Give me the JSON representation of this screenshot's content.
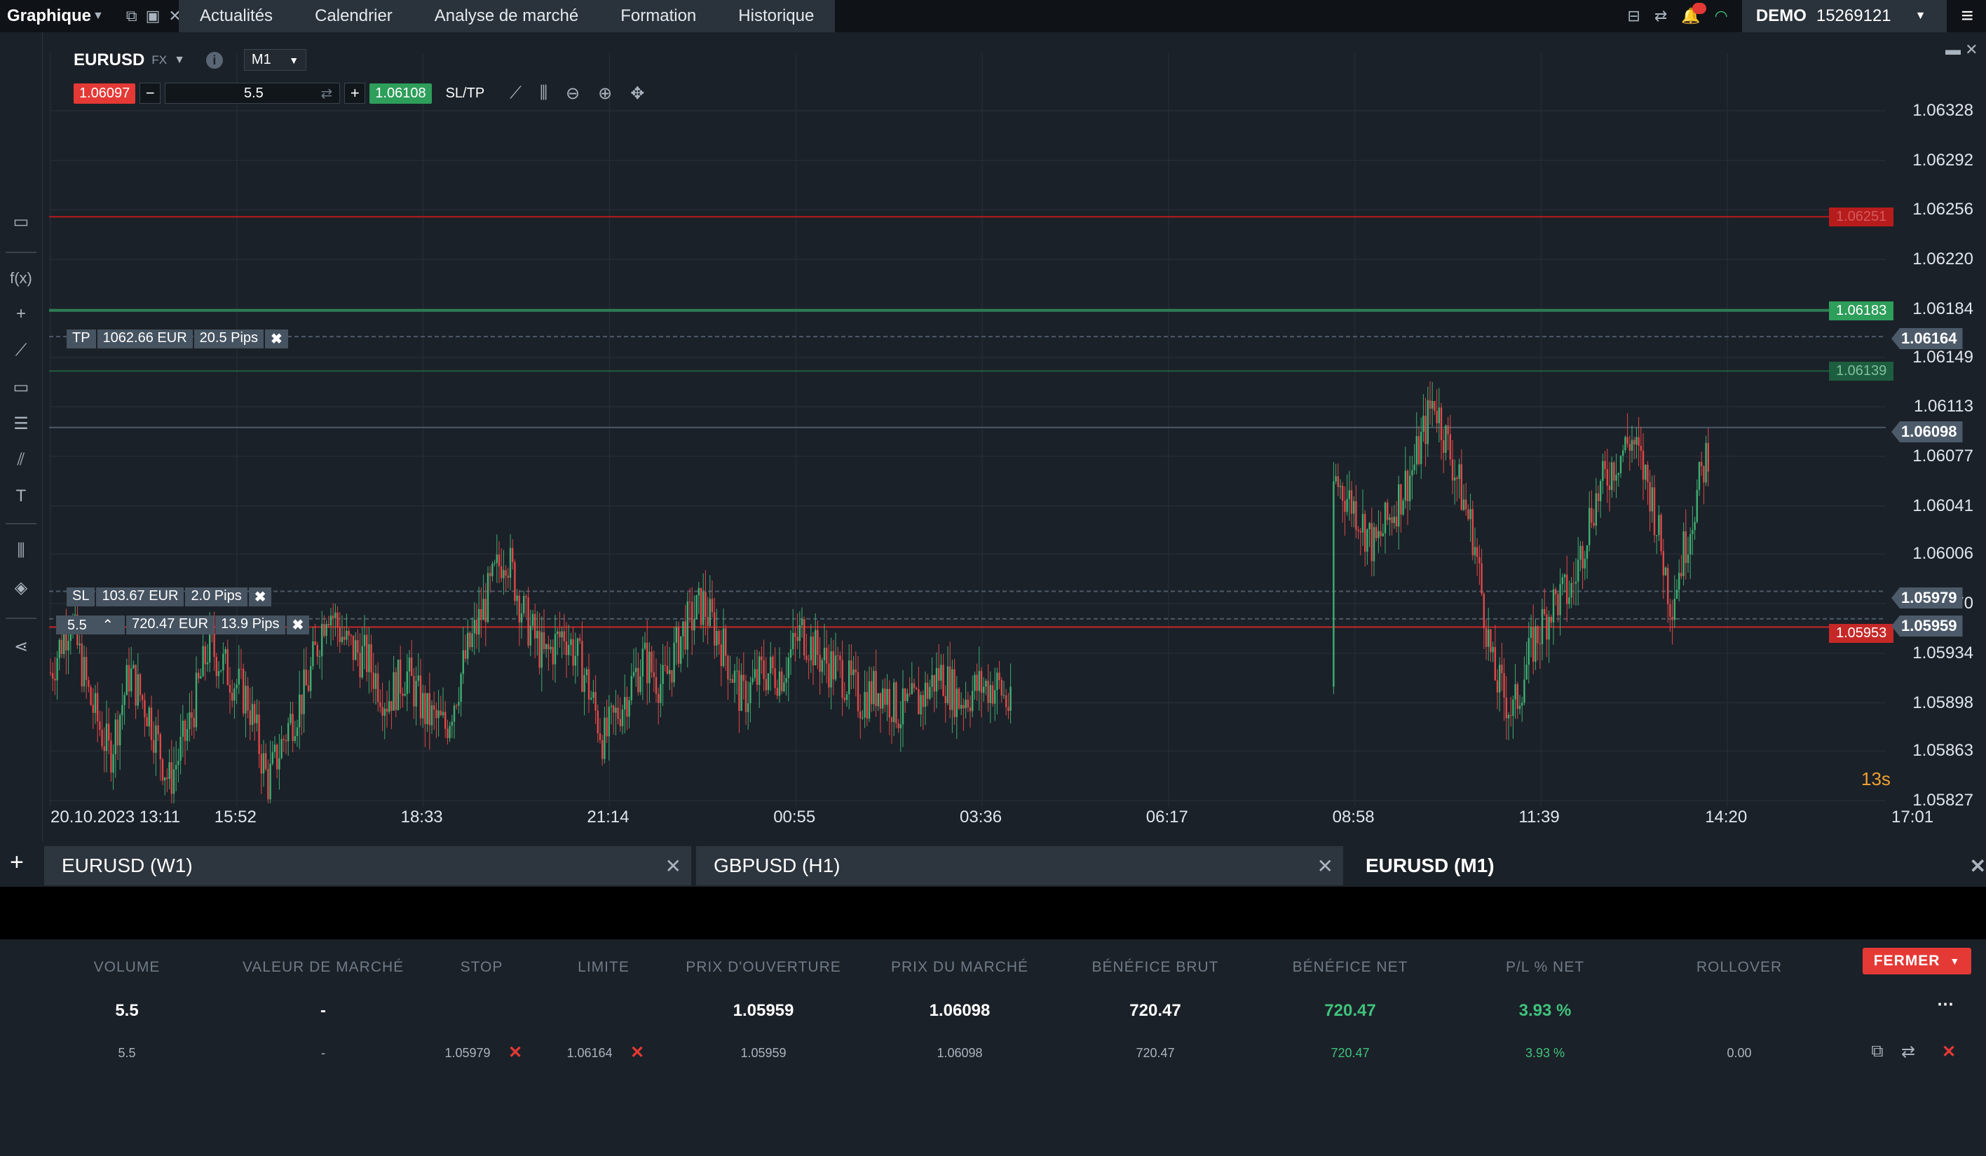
{
  "topbar": {
    "graph_label": "Graphique",
    "nav": [
      "Actualités",
      "Calendrier",
      "Analyse de marché",
      "Formation",
      "Historique"
    ],
    "account_mode": "DEMO",
    "account_id": "15269121"
  },
  "chart_header": {
    "symbol": "EURUSD",
    "symbol_type": "FX",
    "timeframe": "M1",
    "bid": "1.06097",
    "volume": "5.5",
    "ask": "1.06108",
    "sltp_label": "SL/TP"
  },
  "chart_data": {
    "type": "candlestick",
    "price_axis": [
      "1.06328",
      "1.06292",
      "1.06256",
      "1.06220",
      "1.06184",
      "1.06149",
      "1.06113",
      "1.06077",
      "1.06041",
      "1.06006",
      "1.05970",
      "1.05934",
      "1.05898",
      "1.05863",
      "1.05827"
    ],
    "time_axis": [
      "20.10.2023 13:11",
      "15:52",
      "18:33",
      "21:14",
      "00:55",
      "03:36",
      "06:17",
      "08:58",
      "11:39",
      "14:20",
      "17:01"
    ],
    "ylim": [
      1.05827,
      1.06328
    ],
    "close_path": [
      1.0592,
      1.0596,
      1.059,
      1.0586,
      1.0592,
      1.0589,
      1.0584,
      1.0588,
      1.0594,
      1.0592,
      1.059,
      1.0584,
      1.0588,
      1.0591,
      1.0597,
      1.0594,
      1.0593,
      1.059,
      1.0592,
      1.0589,
      1.0588,
      1.0593,
      1.0597,
      1.0601,
      1.0596,
      1.0593,
      1.0595,
      1.0592,
      1.0587,
      1.059,
      1.0593,
      1.0591,
      1.0595,
      1.0597,
      1.0594,
      1.059,
      1.0592,
      1.0592,
      1.0595,
      1.0593,
      1.0592,
      1.059,
      1.0591,
      1.0589,
      1.059,
      1.0592,
      1.059,
      1.0591,
      1.0591,
      1.0588,
      1.0586,
      1.0585,
      1.0583,
      1.0584,
      1.0583,
      1.0584,
      1.0582,
      1.058,
      1.0577,
      1.0575,
      1.0573,
      1.057,
      1.0583,
      1.0592,
      1.06,
      1.0606,
      1.0604,
      1.0601,
      1.0604,
      1.0607,
      1.0612,
      1.0607,
      1.0602,
      1.0592,
      1.0589,
      1.0594,
      1.0597,
      1.0598,
      1.0604,
      1.0607,
      1.0609,
      1.0605,
      1.0597,
      1.0603,
      1.0609
    ],
    "series_gaps": [
      [
        1444,
        1900
      ]
    ],
    "horizontal_levels": [
      {
        "price": "1.06251",
        "color": "#b71c1c"
      },
      {
        "price": "1.06183",
        "color": "#2e7d54"
      },
      {
        "price": "1.06164",
        "color": "#4c5a69"
      },
      {
        "price": "1.06139",
        "color": "#1e5e40"
      },
      {
        "price": "1.06098",
        "color": "#4c5a69"
      },
      {
        "price": "1.05979",
        "color": "#4c5a69"
      },
      {
        "price": "1.05959",
        "color": "#4c5a69"
      },
      {
        "price": "1.05953",
        "color": "#c62828"
      }
    ],
    "countdown": "13s"
  },
  "orders": {
    "tp": {
      "label": "TP",
      "value": "1062.66 EUR",
      "pips": "20.5 Pips"
    },
    "sl": {
      "label": "SL",
      "value": "103.67 EUR",
      "pips": "2.0 Pips"
    },
    "position": {
      "label": "5.5",
      "value": "720.47 EUR",
      "pips": "13.9 Pips"
    }
  },
  "tabs": [
    {
      "label": "EURUSD (W1)"
    },
    {
      "label": "GBPUSD (H1)"
    },
    {
      "label": "EURUSD (M1)"
    }
  ],
  "table": {
    "headers": [
      "VOLUME",
      "VALEUR DE MARCHÉ",
      "STOP",
      "LIMITE",
      "PRIX D'OUVERTURE",
      "PRIX DU MARCHÉ",
      "BÉNÉFICE BRUT",
      "BÉNÉFICE NET",
      "P/L % NET",
      "ROLLOVER"
    ],
    "close_label": "FERMER",
    "summary": {
      "volume": "5.5",
      "market_value": "-",
      "open_price": "1.05959",
      "market_price": "1.06098",
      "gross": "720.47",
      "net": "720.47",
      "pl_pct": "3.93 %"
    },
    "row": {
      "volume": "5.5",
      "market_value": "-",
      "stop": "1.05979",
      "limit": "1.06164",
      "open_price": "1.05959",
      "market_price": "1.06098",
      "gross": "720.47",
      "net": "720.47",
      "pl_pct": "3.93 %",
      "rollover": "0.00"
    }
  }
}
